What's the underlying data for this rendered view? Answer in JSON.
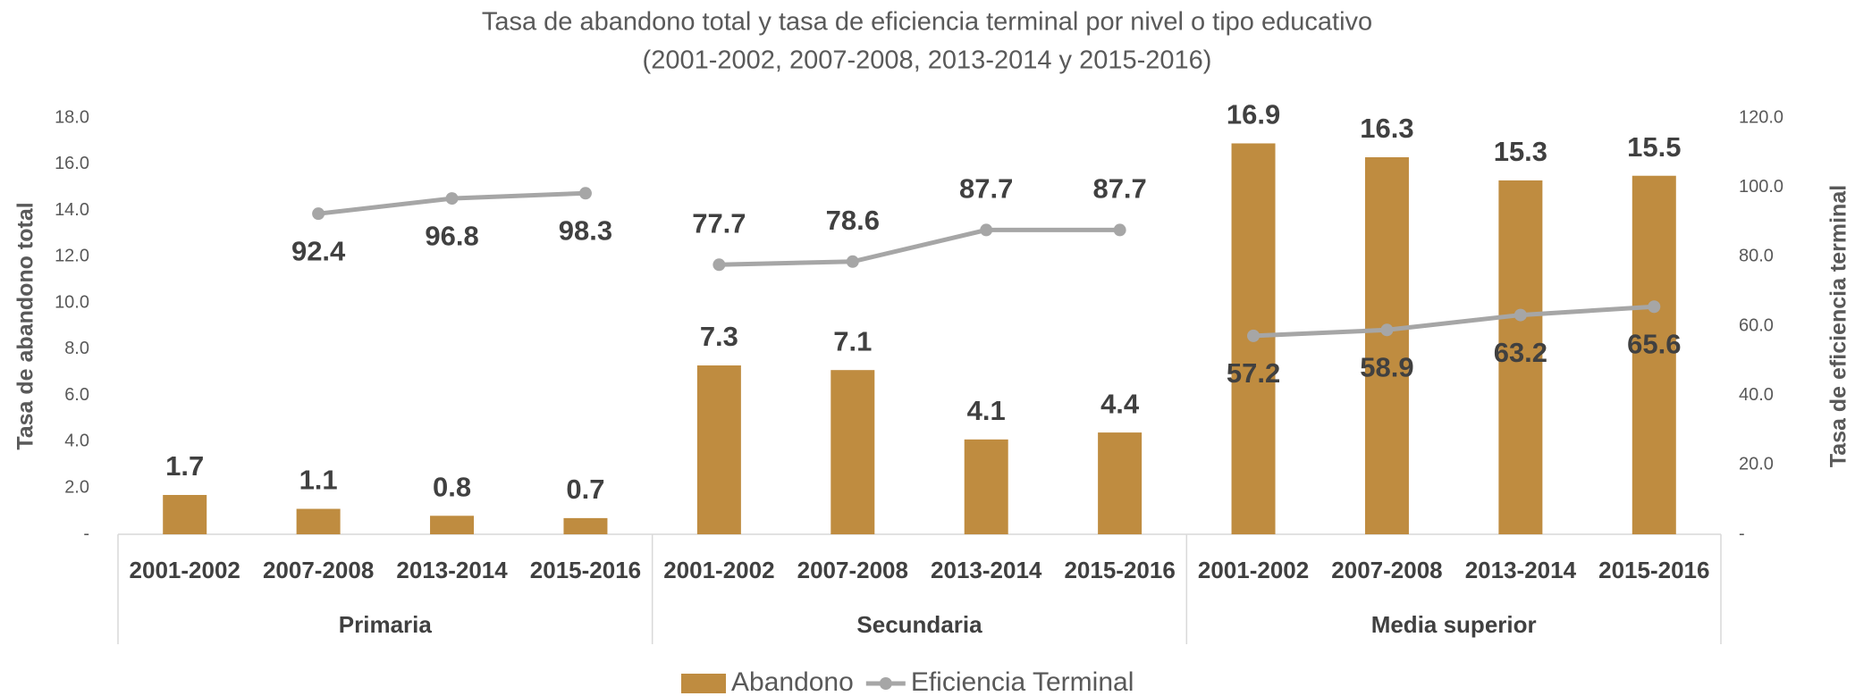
{
  "chart_data": {
    "type": "bar-line",
    "title": "Tasa de abandono total y tasa de eficiencia terminal por nivel o tipo educativo",
    "subtitle": "(2001-2002, 2007-2008, 2013-2014 y 2015-2016)",
    "ylabel": "Tasa de abandono total",
    "y2label": "Tasa de eficiencia terminal",
    "categories": [
      "2001-2002",
      "2007-2008",
      "2013-2014",
      "2015-2016",
      "2001-2002",
      "2007-2008",
      "2013-2014",
      "2015-2016",
      "2001-2002",
      "2007-2008",
      "2013-2014",
      "2015-2016"
    ],
    "groups": [
      "Primaria",
      "Secundaria",
      "Media superior"
    ],
    "series": [
      {
        "name": "Abandono",
        "color": "#bf8c40",
        "kind": "bar",
        "values": [
          1.7,
          1.1,
          0.8,
          0.7,
          7.3,
          7.1,
          4.1,
          4.4,
          16.9,
          16.3,
          15.3,
          15.5
        ]
      },
      {
        "name": "Eficiencia Terminal",
        "color": "#a6a6a6",
        "kind": "line",
        "axis": "y2",
        "values": [
          null,
          92.4,
          96.8,
          98.3,
          77.7,
          78.6,
          87.7,
          87.7,
          57.2,
          58.9,
          63.2,
          65.6
        ]
      }
    ],
    "ylim": [
      0,
      18
    ],
    "yticks": [
      {
        "value": 0,
        "label": "-"
      },
      {
        "value": 2,
        "label": "2.0"
      },
      {
        "value": 4,
        "label": "4.0"
      },
      {
        "value": 6,
        "label": "6.0"
      },
      {
        "value": 8,
        "label": "8.0"
      },
      {
        "value": 10,
        "label": "10.0"
      },
      {
        "value": 12,
        "label": "12.0"
      },
      {
        "value": 14,
        "label": "14.0"
      },
      {
        "value": 16,
        "label": "16.0"
      },
      {
        "value": 18,
        "label": "18.0"
      }
    ],
    "y2lim": [
      0,
      120
    ],
    "y2ticks": [
      {
        "value": 0,
        "label": "-"
      },
      {
        "value": 20,
        "label": "20.0"
      },
      {
        "value": 40,
        "label": "40.0"
      },
      {
        "value": 60,
        "label": "60.0"
      },
      {
        "value": 80,
        "label": "80.0"
      },
      {
        "value": 100,
        "label": "100.0"
      },
      {
        "value": 120,
        "label": "120.0"
      }
    ],
    "legend": "bottom"
  }
}
